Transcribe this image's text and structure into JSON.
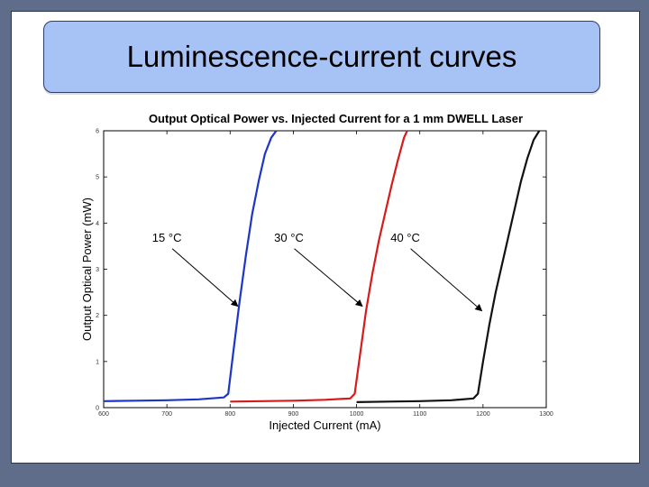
{
  "slide": {
    "title": "Luminescence-current curves"
  },
  "colors": {
    "frame": "#5f6d8a",
    "title_box": "#a7c2f5",
    "series_15": "#1f35c8",
    "series_30": "#d81a1a",
    "series_40": "#111111"
  },
  "chart_data": {
    "type": "line",
    "title": "Output Optical Power vs. Injected Current for a 1 mm DWELL Laser",
    "xlabel": "Injected Current (mA)",
    "ylabel": "Output Optical Power (mW)",
    "xlim": [
      600,
      1300
    ],
    "ylim": [
      0,
      6
    ],
    "xticks": [
      "600",
      "700",
      "800",
      "900",
      "1000",
      "1100",
      "1200",
      "1300"
    ],
    "yticks": [
      "0",
      "1",
      "2",
      "3",
      "4",
      "5",
      "6"
    ],
    "grid": false,
    "series": [
      {
        "name": "15 °C",
        "x": [
          600,
          650,
          700,
          750,
          790,
          797,
          805,
          815,
          825,
          835,
          845,
          855,
          865,
          873
        ],
        "y": [
          0.14,
          0.15,
          0.16,
          0.18,
          0.22,
          0.3,
          1.2,
          2.3,
          3.3,
          4.2,
          4.9,
          5.5,
          5.85,
          6.0
        ]
      },
      {
        "name": "30 °C",
        "x": [
          800,
          850,
          900,
          950,
          990,
          997,
          1005,
          1015,
          1025,
          1035,
          1045,
          1055,
          1065,
          1075,
          1080
        ],
        "y": [
          0.13,
          0.14,
          0.15,
          0.17,
          0.2,
          0.3,
          1.1,
          2.1,
          2.9,
          3.6,
          4.2,
          4.8,
          5.35,
          5.85,
          6.0
        ]
      },
      {
        "name": "40 °C",
        "x": [
          1000,
          1050,
          1100,
          1150,
          1185,
          1192,
          1200,
          1210,
          1220,
          1230,
          1240,
          1250,
          1260,
          1270,
          1280,
          1289
        ],
        "y": [
          0.12,
          0.13,
          0.14,
          0.16,
          0.2,
          0.3,
          1.0,
          1.8,
          2.5,
          3.1,
          3.7,
          4.3,
          4.9,
          5.4,
          5.8,
          6.0
        ]
      }
    ],
    "annotations": [
      {
        "text": "15 °C",
        "label_at": [
          700,
          3.6
        ],
        "arrow_to": [
          812,
          2.2
        ]
      },
      {
        "text": "30 °C",
        "label_at": [
          893,
          3.6
        ],
        "arrow_to": [
          1009,
          2.2
        ]
      },
      {
        "text": "40 °C",
        "label_at": [
          1077,
          3.6
        ],
        "arrow_to": [
          1198,
          2.1
        ]
      }
    ]
  }
}
